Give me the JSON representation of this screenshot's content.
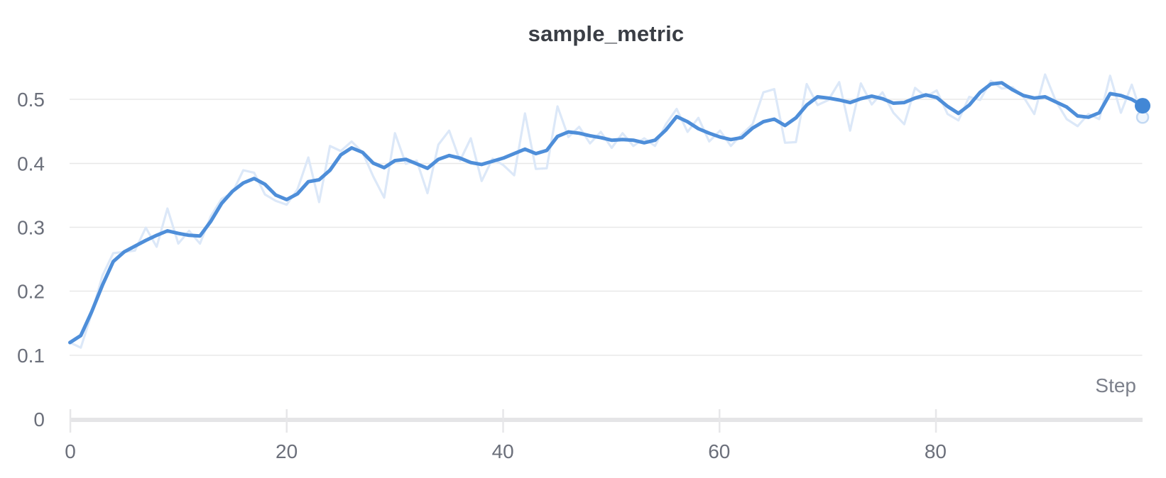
{
  "chart_data": {
    "type": "line",
    "title": "sample_metric",
    "xlabel": "Step",
    "x_ticks": [
      0,
      20,
      40,
      60,
      80
    ],
    "x_tick_labels": [
      "0",
      "20",
      "40",
      "60",
      "80"
    ],
    "y_ticks": [
      0,
      0.1,
      0.2,
      0.3,
      0.4,
      0.5
    ],
    "y_tick_labels": [
      "0",
      "0.1",
      "0.2",
      "0.3",
      "0.4",
      "0.5"
    ],
    "xlim": [
      0,
      99
    ],
    "ylim": [
      0,
      0.55
    ],
    "grid": "horizontal-only",
    "legend": "none",
    "x": {
      "start": 0,
      "step": 1,
      "count": 100
    },
    "series": [
      {
        "name": "sample_metric (raw)",
        "role": "background-unsmoothed",
        "color": "#dce8f8",
        "values": [
          0.12,
          0.112,
          0.165,
          0.225,
          0.26,
          0.262,
          0.264,
          0.3,
          0.27,
          0.33,
          0.275,
          0.295,
          0.275,
          0.318,
          0.345,
          0.355,
          0.39,
          0.386,
          0.352,
          0.342,
          0.336,
          0.36,
          0.41,
          0.34,
          0.428,
          0.42,
          0.435,
          0.418,
          0.38,
          0.347,
          0.448,
          0.4,
          0.405,
          0.354,
          0.43,
          0.452,
          0.405,
          0.44,
          0.373,
          0.408,
          0.398,
          0.382,
          0.479,
          0.392,
          0.393,
          0.49,
          0.442,
          0.458,
          0.432,
          0.45,
          0.425,
          0.448,
          0.428,
          0.44,
          0.428,
          0.462,
          0.486,
          0.45,
          0.472,
          0.435,
          0.452,
          0.428,
          0.446,
          0.462,
          0.512,
          0.517,
          0.433,
          0.434,
          0.525,
          0.492,
          0.5,
          0.528,
          0.452,
          0.526,
          0.493,
          0.512,
          0.48,
          0.462,
          0.519,
          0.505,
          0.515,
          0.478,
          0.468,
          0.505,
          0.5,
          0.53,
          0.518,
          0.52,
          0.505,
          0.478,
          0.54,
          0.498,
          0.47,
          0.459,
          0.478,
          0.47,
          0.538,
          0.48,
          0.524,
          0.473
        ]
      },
      {
        "name": "sample_metric (smoothed)",
        "role": "foreground-smoothed",
        "color": "#4e8ed9",
        "values": [
          0.12,
          0.131,
          0.168,
          0.21,
          0.247,
          0.262,
          0.271,
          0.28,
          0.288,
          0.295,
          0.291,
          0.288,
          0.287,
          0.31,
          0.338,
          0.357,
          0.37,
          0.377,
          0.368,
          0.351,
          0.344,
          0.353,
          0.372,
          0.375,
          0.39,
          0.414,
          0.425,
          0.418,
          0.401,
          0.394,
          0.405,
          0.407,
          0.4,
          0.393,
          0.407,
          0.413,
          0.409,
          0.402,
          0.399,
          0.404,
          0.409,
          0.416,
          0.423,
          0.416,
          0.421,
          0.443,
          0.45,
          0.448,
          0.444,
          0.441,
          0.437,
          0.438,
          0.437,
          0.433,
          0.437,
          0.453,
          0.474,
          0.466,
          0.455,
          0.448,
          0.442,
          0.438,
          0.441,
          0.456,
          0.466,
          0.47,
          0.46,
          0.472,
          0.492,
          0.505,
          0.503,
          0.5,
          0.496,
          0.502,
          0.506,
          0.502,
          0.495,
          0.496,
          0.503,
          0.508,
          0.504,
          0.49,
          0.479,
          0.492,
          0.512,
          0.525,
          0.527,
          0.516,
          0.507,
          0.503,
          0.505,
          0.497,
          0.489,
          0.475,
          0.473,
          0.48,
          0.51,
          0.507,
          0.501,
          0.491
        ]
      }
    ],
    "endpoint_markers": [
      {
        "series": "sample_metric (raw)",
        "step": 99,
        "value": 0.473,
        "style": "ring",
        "color": "#c3d9f3",
        "fill": "#f0f6fd"
      },
      {
        "series": "sample_metric (smoothed)",
        "step": 99,
        "value": 0.491,
        "style": "solid",
        "color": "#4287d5"
      }
    ],
    "colors": {
      "smoothed_line": "#4e8ed9",
      "raw_line": "#dce8f8",
      "endpoint_dot": "#4287d5",
      "endpoint_ring": "#c3d9f3",
      "gridline": "#e8e8e8",
      "axis_line": "#e5e5e7",
      "tick": "#e7e7e9",
      "tick_label": "#6b6f7a",
      "axis_label": "#7c808b",
      "title": "#3a3e45"
    }
  }
}
